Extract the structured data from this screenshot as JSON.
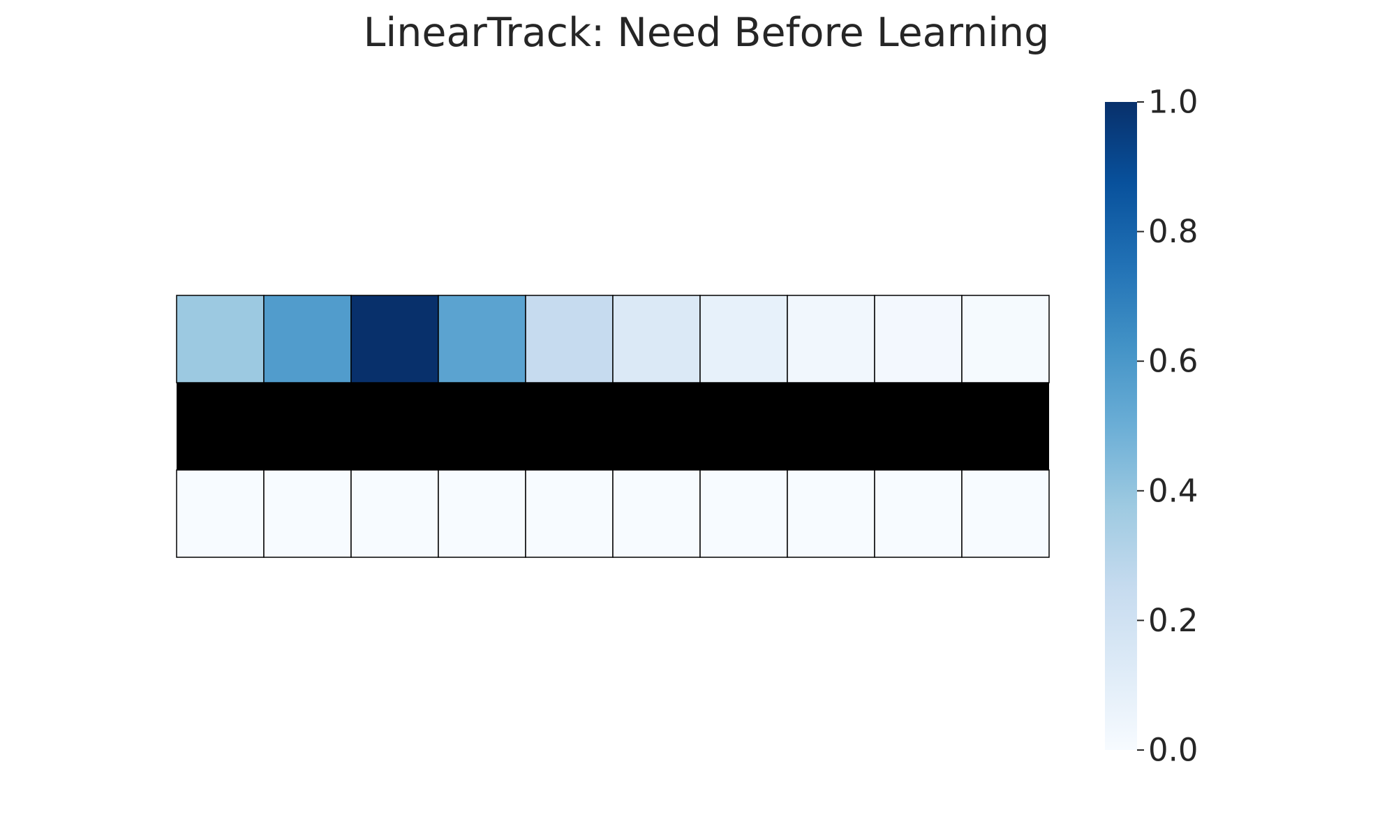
{
  "chart_data": {
    "type": "heatmap",
    "title": "LinearTrack: Need Before Learning",
    "rows": 3,
    "cols": 10,
    "values": [
      [
        0.38,
        0.58,
        1.0,
        0.55,
        0.25,
        0.14,
        0.08,
        0.03,
        0.02,
        0.01
      ],
      [
        null,
        null,
        null,
        null,
        null,
        null,
        null,
        null,
        null,
        null
      ],
      [
        0.0,
        0.0,
        0.0,
        0.0,
        0.0,
        0.0,
        0.0,
        0.0,
        0.0,
        0.0
      ]
    ],
    "masked_row_color": "#000000",
    "colormap": "Blues",
    "colormap_stops": [
      "#f7fbff",
      "#deebf7",
      "#c6dbef",
      "#9ecae1",
      "#6baed6",
      "#4292c6",
      "#2171b5",
      "#08519c",
      "#08306b"
    ],
    "colorbar": {
      "vmin": 0.0,
      "vmax": 1.0,
      "ticks": [
        0.0,
        0.2,
        0.4,
        0.6,
        0.8,
        1.0
      ],
      "tick_labels": [
        "0.0",
        "0.2",
        "0.4",
        "0.6",
        "0.8",
        "1.0"
      ],
      "position": "right"
    },
    "grid": true,
    "cell_border_color": "#000000"
  }
}
